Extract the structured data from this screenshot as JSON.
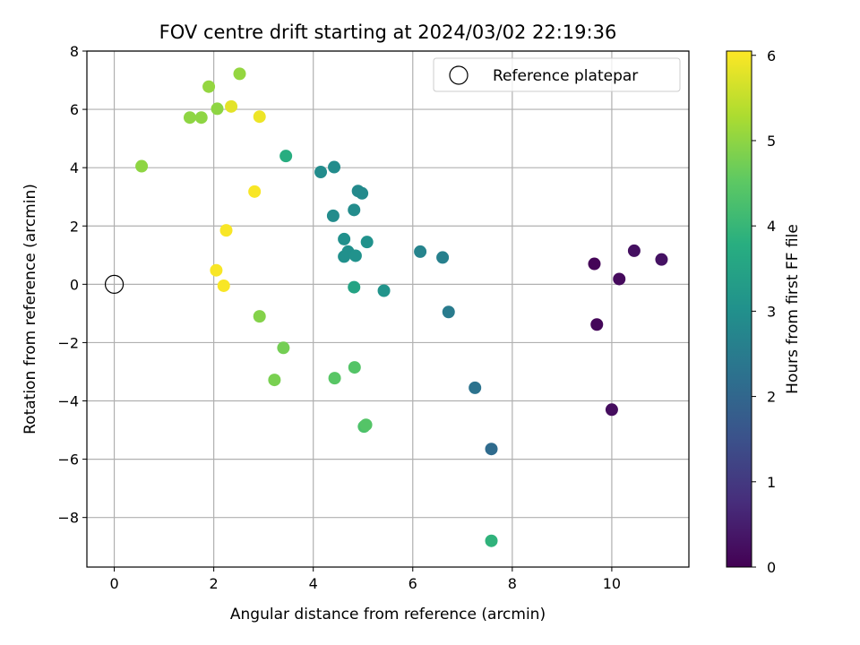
{
  "chart_data": {
    "type": "scatter",
    "title": "FOV centre drift starting at 2024/03/02 22:19:36",
    "xlabel": "Angular distance from reference (arcmin)",
    "ylabel": "Rotation from reference (arcmin)",
    "xlim": [
      -0.55,
      11.55
    ],
    "ylim": [
      -9.7,
      8.0
    ],
    "xticks": [
      "0",
      "2",
      "4",
      "6",
      "8",
      "10"
    ],
    "yticks": [
      "8",
      "6",
      "4",
      "2",
      "0",
      "−2",
      "−4",
      "−6",
      "−8"
    ],
    "xtick_values": [
      0,
      2,
      4,
      6,
      8,
      10
    ],
    "ytick_values": [
      8,
      6,
      4,
      2,
      0,
      -2,
      -4,
      -6,
      -8
    ],
    "grid": true,
    "legend": {
      "position": "top-right",
      "label": "Reference platepar"
    },
    "reference_point": {
      "x": 0,
      "y": 0
    },
    "colorbar": {
      "label": "Hours from first FF file",
      "colormap": "viridis",
      "range": [
        0,
        6.05
      ],
      "ticks": [
        "0",
        "1",
        "2",
        "3",
        "4",
        "5",
        "6"
      ],
      "tick_values": [
        0,
        1,
        2,
        3,
        4,
        5,
        6
      ]
    },
    "points": [
      {
        "x": 9.65,
        "y": 0.7,
        "c": 0.05
      },
      {
        "x": 9.7,
        "y": -1.38,
        "c": 0.1
      },
      {
        "x": 10.15,
        "y": 0.18,
        "c": 0.15
      },
      {
        "x": 10.0,
        "y": -4.3,
        "c": 0.2
      },
      {
        "x": 10.45,
        "y": 1.15,
        "c": 0.25
      },
      {
        "x": 11.0,
        "y": 0.85,
        "c": 0.3
      },
      {
        "x": 7.58,
        "y": -5.65,
        "c": 2.1
      },
      {
        "x": 7.25,
        "y": -3.55,
        "c": 2.3
      },
      {
        "x": 6.72,
        "y": -0.95,
        "c": 2.5
      },
      {
        "x": 6.6,
        "y": 0.92,
        "c": 2.6
      },
      {
        "x": 6.15,
        "y": 1.12,
        "c": 2.7
      },
      {
        "x": 5.42,
        "y": -0.22,
        "c": 3.1
      },
      {
        "x": 5.08,
        "y": 1.45,
        "c": 3.05
      },
      {
        "x": 4.62,
        "y": 0.95,
        "c": 3.0
      },
      {
        "x": 4.7,
        "y": 1.12,
        "c": 3.0
      },
      {
        "x": 4.85,
        "y": 0.98,
        "c": 3.05
      },
      {
        "x": 4.62,
        "y": 1.55,
        "c": 3.0
      },
      {
        "x": 4.4,
        "y": 2.35,
        "c": 2.9
      },
      {
        "x": 4.82,
        "y": 2.55,
        "c": 2.9
      },
      {
        "x": 4.9,
        "y": 3.2,
        "c": 2.85
      },
      {
        "x": 4.98,
        "y": 3.12,
        "c": 2.85
      },
      {
        "x": 4.15,
        "y": 3.85,
        "c": 2.9
      },
      {
        "x": 4.42,
        "y": 4.02,
        "c": 2.9
      },
      {
        "x": 4.82,
        "y": -0.1,
        "c": 3.5
      },
      {
        "x": 3.45,
        "y": 4.4,
        "c": 3.75
      },
      {
        "x": 7.58,
        "y": -8.8,
        "c": 3.9
      },
      {
        "x": 5.02,
        "y": -4.88,
        "c": 4.3
      },
      {
        "x": 5.06,
        "y": -4.82,
        "c": 4.4
      },
      {
        "x": 4.83,
        "y": -2.85,
        "c": 4.4
      },
      {
        "x": 4.43,
        "y": -3.22,
        "c": 4.45
      },
      {
        "x": 3.4,
        "y": -2.18,
        "c": 4.75
      },
      {
        "x": 3.22,
        "y": -3.28,
        "c": 4.8
      },
      {
        "x": 2.92,
        "y": -1.1,
        "c": 4.9
      },
      {
        "x": 0.55,
        "y": 4.05,
        "c": 5.0
      },
      {
        "x": 1.52,
        "y": 5.72,
        "c": 5.0
      },
      {
        "x": 1.75,
        "y": 5.72,
        "c": 5.0
      },
      {
        "x": 2.07,
        "y": 6.02,
        "c": 5.0
      },
      {
        "x": 1.9,
        "y": 6.78,
        "c": 5.05
      },
      {
        "x": 2.52,
        "y": 7.22,
        "c": 5.05
      },
      {
        "x": 2.35,
        "y": 6.1,
        "c": 5.8
      },
      {
        "x": 2.92,
        "y": 5.75,
        "c": 5.9
      },
      {
        "x": 2.82,
        "y": 3.18,
        "c": 6.0
      },
      {
        "x": 2.25,
        "y": 1.85,
        "c": 6.0
      },
      {
        "x": 2.05,
        "y": 0.48,
        "c": 6.0
      },
      {
        "x": 2.2,
        "y": -0.05,
        "c": 6.0
      }
    ]
  }
}
